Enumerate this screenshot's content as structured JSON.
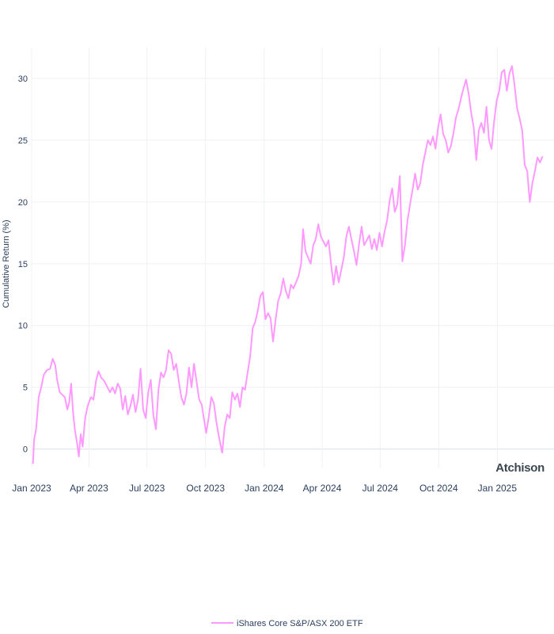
{
  "brand": {
    "name": "Atchison"
  },
  "chart_data": {
    "type": "line",
    "title": "",
    "xlabel": "",
    "ylabel": "Cumulative Return (%)",
    "xlim": [
      "2023-01-01",
      "2025-03-31"
    ],
    "ylim": [
      -1.5,
      32.5
    ],
    "y_ticks": [
      0,
      5,
      10,
      15,
      20,
      25,
      30
    ],
    "x_ticks": [
      {
        "date": "2023-01-01",
        "label": "Jan 2023"
      },
      {
        "date": "2023-04-01",
        "label": "Apr 2023"
      },
      {
        "date": "2023-07-01",
        "label": "Jul 2023"
      },
      {
        "date": "2023-10-01",
        "label": "Oct 2023"
      },
      {
        "date": "2024-01-01",
        "label": "Jan 2024"
      },
      {
        "date": "2024-04-01",
        "label": "Apr 2024"
      },
      {
        "date": "2024-07-01",
        "label": "Jul 2024"
      },
      {
        "date": "2024-10-01",
        "label": "Oct 2024"
      },
      {
        "date": "2025-01-01",
        "label": "Jan 2025"
      }
    ],
    "grid": true,
    "legend": "bottom-center",
    "series": [
      {
        "name": "iShares Core S&P/ASX 200 ETF",
        "color": "#ff99ff",
        "points": [
          [
            "2023-01-03",
            -1.2
          ],
          [
            "2023-01-05",
            0.8
          ],
          [
            "2023-01-08",
            1.6
          ],
          [
            "2023-01-12",
            4.2
          ],
          [
            "2023-01-16",
            5.0
          ],
          [
            "2023-01-20",
            6.0
          ],
          [
            "2023-01-25",
            6.4
          ],
          [
            "2023-01-30",
            6.5
          ],
          [
            "2023-02-03",
            7.3
          ],
          [
            "2023-02-07",
            6.8
          ],
          [
            "2023-02-10",
            5.6
          ],
          [
            "2023-02-14",
            4.6
          ],
          [
            "2023-02-18",
            4.4
          ],
          [
            "2023-02-22",
            4.2
          ],
          [
            "2023-02-26",
            3.2
          ],
          [
            "2023-03-01",
            3.8
          ],
          [
            "2023-03-04",
            5.3
          ],
          [
            "2023-03-07",
            3.0
          ],
          [
            "2023-03-10",
            1.5
          ],
          [
            "2023-03-13",
            0.6
          ],
          [
            "2023-03-16",
            -0.6
          ],
          [
            "2023-03-19",
            1.2
          ],
          [
            "2023-03-22",
            0.2
          ],
          [
            "2023-03-26",
            2.5
          ],
          [
            "2023-03-30",
            3.5
          ],
          [
            "2023-04-04",
            4.2
          ],
          [
            "2023-04-08",
            4.0
          ],
          [
            "2023-04-12",
            5.5
          ],
          [
            "2023-04-16",
            6.3
          ],
          [
            "2023-04-20",
            5.8
          ],
          [
            "2023-04-25",
            5.5
          ],
          [
            "2023-04-30",
            5.0
          ],
          [
            "2023-05-04",
            4.6
          ],
          [
            "2023-05-08",
            5.0
          ],
          [
            "2023-05-12",
            4.5
          ],
          [
            "2023-05-16",
            5.3
          ],
          [
            "2023-05-20",
            4.9
          ],
          [
            "2023-05-24",
            3.2
          ],
          [
            "2023-05-28",
            4.3
          ],
          [
            "2023-06-01",
            2.8
          ],
          [
            "2023-06-05",
            3.5
          ],
          [
            "2023-06-09",
            4.4
          ],
          [
            "2023-06-13",
            3.0
          ],
          [
            "2023-06-17",
            4.0
          ],
          [
            "2023-06-21",
            6.5
          ],
          [
            "2023-06-25",
            3.2
          ],
          [
            "2023-06-29",
            2.5
          ],
          [
            "2023-07-03",
            4.6
          ],
          [
            "2023-07-07",
            5.6
          ],
          [
            "2023-07-11",
            2.8
          ],
          [
            "2023-07-15",
            1.6
          ],
          [
            "2023-07-19",
            4.8
          ],
          [
            "2023-07-23",
            6.2
          ],
          [
            "2023-07-27",
            5.8
          ],
          [
            "2023-07-31",
            6.4
          ],
          [
            "2023-08-04",
            8.0
          ],
          [
            "2023-08-08",
            7.7
          ],
          [
            "2023-08-12",
            6.4
          ],
          [
            "2023-08-16",
            6.9
          ],
          [
            "2023-08-20",
            5.5
          ],
          [
            "2023-08-24",
            4.2
          ],
          [
            "2023-08-28",
            3.6
          ],
          [
            "2023-09-01",
            4.5
          ],
          [
            "2023-09-05",
            6.6
          ],
          [
            "2023-09-09",
            5.0
          ],
          [
            "2023-09-13",
            6.9
          ],
          [
            "2023-09-17",
            5.4
          ],
          [
            "2023-09-21",
            4.0
          ],
          [
            "2023-09-25",
            3.6
          ],
          [
            "2023-09-28",
            2.6
          ],
          [
            "2023-10-02",
            1.3
          ],
          [
            "2023-10-06",
            2.6
          ],
          [
            "2023-10-10",
            4.2
          ],
          [
            "2023-10-14",
            3.7
          ],
          [
            "2023-10-18",
            2.2
          ],
          [
            "2023-10-22",
            1.0
          ],
          [
            "2023-10-27",
            -0.3
          ],
          [
            "2023-10-31",
            1.8
          ],
          [
            "2023-11-04",
            2.8
          ],
          [
            "2023-11-08",
            2.5
          ],
          [
            "2023-11-12",
            4.6
          ],
          [
            "2023-11-16",
            4.0
          ],
          [
            "2023-11-20",
            4.5
          ],
          [
            "2023-11-24",
            3.4
          ],
          [
            "2023-11-28",
            5.0
          ],
          [
            "2023-12-02",
            4.8
          ],
          [
            "2023-12-06",
            6.2
          ],
          [
            "2023-12-10",
            7.5
          ],
          [
            "2023-12-14",
            9.8
          ],
          [
            "2023-12-18",
            10.3
          ],
          [
            "2023-12-22",
            11.2
          ],
          [
            "2023-12-26",
            12.4
          ],
          [
            "2023-12-30",
            12.7
          ],
          [
            "2024-01-03",
            10.5
          ],
          [
            "2024-01-07",
            11.0
          ],
          [
            "2024-01-11",
            10.6
          ],
          [
            "2024-01-15",
            8.7
          ],
          [
            "2024-01-19",
            10.5
          ],
          [
            "2024-01-23",
            12.0
          ],
          [
            "2024-01-27",
            12.6
          ],
          [
            "2024-01-31",
            13.8
          ],
          [
            "2024-02-04",
            12.8
          ],
          [
            "2024-02-08",
            12.2
          ],
          [
            "2024-02-12",
            13.3
          ],
          [
            "2024-02-16",
            13.0
          ],
          [
            "2024-02-20",
            13.5
          ],
          [
            "2024-02-24",
            14.0
          ],
          [
            "2024-02-28",
            15.0
          ],
          [
            "2024-03-02",
            17.8
          ],
          [
            "2024-03-06",
            16.0
          ],
          [
            "2024-03-10",
            15.5
          ],
          [
            "2024-03-14",
            15.0
          ],
          [
            "2024-03-18",
            16.5
          ],
          [
            "2024-03-22",
            17.0
          ],
          [
            "2024-03-26",
            18.2
          ],
          [
            "2024-03-30",
            17.2
          ],
          [
            "2024-04-03",
            16.8
          ],
          [
            "2024-04-07",
            16.4
          ],
          [
            "2024-04-11",
            16.9
          ],
          [
            "2024-04-15",
            15.0
          ],
          [
            "2024-04-19",
            13.3
          ],
          [
            "2024-04-23",
            14.8
          ],
          [
            "2024-04-27",
            13.5
          ],
          [
            "2024-05-01",
            14.5
          ],
          [
            "2024-05-05",
            15.5
          ],
          [
            "2024-05-09",
            17.2
          ],
          [
            "2024-05-13",
            18.0
          ],
          [
            "2024-05-17",
            17.0
          ],
          [
            "2024-05-21",
            16.0
          ],
          [
            "2024-05-25",
            14.9
          ],
          [
            "2024-05-29",
            16.6
          ],
          [
            "2024-06-02",
            18.0
          ],
          [
            "2024-06-06",
            16.5
          ],
          [
            "2024-06-10",
            16.9
          ],
          [
            "2024-06-14",
            17.3
          ],
          [
            "2024-06-18",
            16.2
          ],
          [
            "2024-06-22",
            17.0
          ],
          [
            "2024-06-26",
            16.1
          ],
          [
            "2024-06-30",
            17.5
          ],
          [
            "2024-07-04",
            16.4
          ],
          [
            "2024-07-08",
            17.6
          ],
          [
            "2024-07-12",
            18.5
          ],
          [
            "2024-07-16",
            20.1
          ],
          [
            "2024-07-20",
            21.1
          ],
          [
            "2024-07-24",
            19.2
          ],
          [
            "2024-07-28",
            19.8
          ],
          [
            "2024-08-01",
            22.1
          ],
          [
            "2024-08-05",
            15.2
          ],
          [
            "2024-08-09",
            16.5
          ],
          [
            "2024-08-13",
            18.5
          ],
          [
            "2024-08-17",
            19.8
          ],
          [
            "2024-08-21",
            21.0
          ],
          [
            "2024-08-25",
            22.3
          ],
          [
            "2024-08-29",
            21.0
          ],
          [
            "2024-09-02",
            21.5
          ],
          [
            "2024-09-06",
            23.0
          ],
          [
            "2024-09-10",
            24.0
          ],
          [
            "2024-09-14",
            25.0
          ],
          [
            "2024-09-18",
            24.6
          ],
          [
            "2024-09-22",
            25.3
          ],
          [
            "2024-09-26",
            24.3
          ],
          [
            "2024-09-30",
            26.0
          ],
          [
            "2024-10-04",
            27.1
          ],
          [
            "2024-10-08",
            25.5
          ],
          [
            "2024-10-12",
            25.0
          ],
          [
            "2024-10-16",
            24.0
          ],
          [
            "2024-10-20",
            24.5
          ],
          [
            "2024-10-24",
            25.5
          ],
          [
            "2024-10-28",
            26.8
          ],
          [
            "2024-11-01",
            27.5
          ],
          [
            "2024-11-05",
            28.4
          ],
          [
            "2024-11-09",
            29.2
          ],
          [
            "2024-11-13",
            29.9
          ],
          [
            "2024-11-17",
            28.8
          ],
          [
            "2024-11-21",
            27.2
          ],
          [
            "2024-11-25",
            26.0
          ],
          [
            "2024-11-29",
            23.4
          ],
          [
            "2024-12-03",
            25.8
          ],
          [
            "2024-12-07",
            26.4
          ],
          [
            "2024-12-11",
            25.6
          ],
          [
            "2024-12-15",
            27.7
          ],
          [
            "2024-12-19",
            25.0
          ],
          [
            "2024-12-23",
            24.3
          ],
          [
            "2024-12-27",
            26.5
          ],
          [
            "2024-12-31",
            28.2
          ],
          [
            "2025-01-04",
            29.0
          ],
          [
            "2025-01-08",
            30.5
          ],
          [
            "2025-01-12",
            30.7
          ],
          [
            "2025-01-16",
            29.0
          ],
          [
            "2025-01-20",
            30.4
          ],
          [
            "2025-01-24",
            31.0
          ],
          [
            "2025-01-28",
            29.5
          ],
          [
            "2025-02-01",
            27.6
          ],
          [
            "2025-02-05",
            26.8
          ],
          [
            "2025-02-09",
            25.8
          ],
          [
            "2025-02-13",
            23.0
          ],
          [
            "2025-02-17",
            22.5
          ],
          [
            "2025-02-21",
            20.0
          ],
          [
            "2025-02-25",
            21.5
          ],
          [
            "2025-03-01",
            22.5
          ],
          [
            "2025-03-05",
            23.6
          ],
          [
            "2025-03-09",
            23.2
          ],
          [
            "2025-03-13",
            23.7
          ]
        ]
      }
    ]
  }
}
